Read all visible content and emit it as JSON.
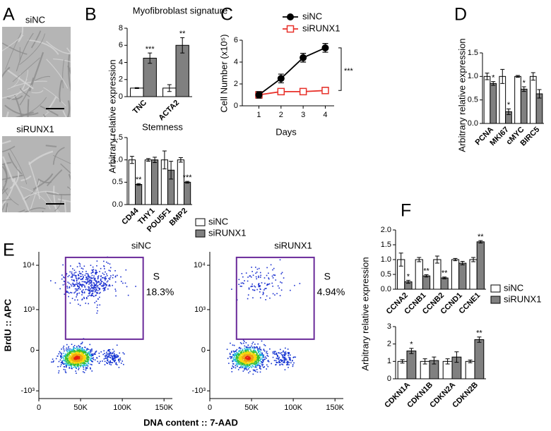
{
  "images": {
    "panel": "A",
    "titles": [
      "siNC",
      "siRUNX1"
    ]
  },
  "chart_data": [
    {
      "type": "bar",
      "panel": "B",
      "title": "Myofibroblast signature",
      "ylabel": "Arbitrary relative expression",
      "categories": [
        "TNC",
        "ACTA2"
      ],
      "series": [
        {
          "color": "#ffffff",
          "values": [
            1,
            1
          ],
          "errors": [
            0.05,
            0.4
          ]
        },
        {
          "color": "#808080",
          "values": [
            4.5,
            6
          ],
          "errors": [
            0.6,
            0.9
          ],
          "significance": [
            "***",
            "**"
          ]
        }
      ],
      "ylim": [
        0,
        8
      ],
      "yticks": [
        0,
        2,
        4,
        6,
        8
      ]
    },
    {
      "type": "bar",
      "title": "Stemness",
      "categories": [
        "CD44",
        "THY1",
        "POU5F1",
        "BMP2"
      ],
      "series": [
        {
          "name": "siNC",
          "color": "#ffffff",
          "values": [
            1,
            1,
            1,
            1
          ],
          "errors": [
            0.08,
            0.03,
            0.2,
            0.05
          ]
        },
        {
          "name": "siRUNX1",
          "color": "#808080",
          "values": [
            0.45,
            1,
            0.77,
            0.5
          ],
          "errors": [
            0.02,
            0.06,
            0.2,
            0.02
          ],
          "significance": [
            "**",
            null,
            null,
            "***"
          ]
        }
      ],
      "ylim": [
        0,
        1.5
      ],
      "yticks": [
        {
          "value": 0,
          "label": "0.0"
        },
        {
          "value": 0.5,
          "label": "0.5"
        },
        {
          "value": 1,
          "label": "1.0"
        },
        {
          "value": 1.5,
          "label": "1.5"
        }
      ],
      "legend": "right"
    },
    {
      "type": "line",
      "panel": "C",
      "xlabel": "Days",
      "ylabel": "Cell Number (x10⁵)",
      "x": [
        1,
        2,
        3,
        4
      ],
      "series": [
        {
          "name": "siNC",
          "color": "#000000",
          "marker": "circle",
          "values": [
            1.0,
            2.5,
            4.4,
            5.3
          ],
          "errors": [
            0.3,
            0.4,
            0.4,
            0.4
          ]
        },
        {
          "name": "siRUNX1",
          "color": "#e8312a",
          "marker": "square",
          "values": [
            1.0,
            1.3,
            1.3,
            1.4
          ],
          "errors": [
            0.2,
            0.2,
            0.2,
            0.3
          ]
        }
      ],
      "annotation": "***",
      "xlim": [
        0.25,
        4.4
      ],
      "xticks": [
        1,
        2,
        3,
        4
      ],
      "ylim": [
        0,
        6
      ],
      "yticks": [
        0,
        2,
        4,
        6
      ],
      "legend": "top"
    },
    {
      "type": "bar",
      "panel": "D",
      "ylabel": "Arbitrary relative expression",
      "categories": [
        "PCNA",
        "MKI67",
        "cMYC",
        "BIRC5"
      ],
      "series": [
        {
          "color": "#ffffff",
          "values": [
            1,
            1,
            1,
            1
          ],
          "errors": [
            0.07,
            0.15,
            0.02,
            0.08
          ]
        },
        {
          "color": "#808080",
          "values": [
            0.85,
            0.25,
            0.73,
            0.63
          ],
          "errors": [
            0.04,
            0.06,
            0.05,
            0.09
          ],
          "significance": [
            "*",
            "*",
            "*",
            null
          ]
        }
      ],
      "ylim": [
        0,
        1.5
      ],
      "yticks": [
        {
          "value": 0,
          "label": "0.0"
        },
        {
          "value": 0.5,
          "label": "0.5"
        },
        {
          "value": 1,
          "label": "1.0"
        },
        {
          "value": 1.5,
          "label": "1.5"
        }
      ]
    },
    {
      "type": "bar",
      "panel": "F",
      "ylabel": "Arbitrary relative expression",
      "categories": [
        "CCNA2",
        "CCNB1",
        "CCNB2",
        "CCND1",
        "CCNE1"
      ],
      "series": [
        {
          "name": "siNC",
          "color": "#ffffff",
          "values": [
            1,
            1,
            1,
            1,
            1
          ],
          "errors": [
            0.22,
            0.07,
            0.12,
            0.04,
            0.07
          ]
        },
        {
          "name": "siRUNX1",
          "color": "#808080",
          "values": [
            0.25,
            0.45,
            0.38,
            0.88,
            1.6
          ],
          "errors": [
            0.05,
            0.04,
            0.03,
            0.06,
            0.04
          ],
          "significance": [
            "*",
            "**",
            "**",
            null,
            "**"
          ]
        }
      ],
      "ylim": [
        0,
        2
      ],
      "yticks": [
        {
          "value": 0,
          "label": "0.0"
        },
        {
          "value": 0.5,
          "label": "0.5"
        },
        {
          "value": 1,
          "label": "1.0"
        },
        {
          "value": 1.5,
          "label": "1.5"
        },
        {
          "value": 2,
          "label": "2.0"
        }
      ],
      "legend": "right"
    },
    {
      "type": "bar",
      "categories": [
        "CDKN1A",
        "CDKN1B",
        "CDKN2A",
        "CDKN2B"
      ],
      "series": [
        {
          "color": "#ffffff",
          "values": [
            1,
            1,
            1,
            1
          ],
          "errors": [
            0.1,
            0.15,
            0.15,
            0.08
          ]
        },
        {
          "color": "#808080",
          "values": [
            1.6,
            1.05,
            1.25,
            2.25
          ],
          "errors": [
            0.15,
            0.2,
            0.3,
            0.15
          ],
          "significance": [
            "*",
            null,
            null,
            "**"
          ]
        }
      ],
      "ylim": [
        0,
        3
      ],
      "yticks": [
        0,
        1,
        2,
        3
      ]
    },
    {
      "type": "scatter",
      "panel": "E",
      "title": "siNC",
      "xlabel": "DNA content :: 7-AAD",
      "ylabel": "BrdU :: APC",
      "xlim": [
        0,
        160000
      ],
      "xticks": [
        0,
        {
          "value": 50000,
          "label": "50K"
        },
        {
          "value": 100000,
          "label": "100K"
        },
        {
          "value": 150000,
          "label": "150K"
        }
      ],
      "ylim": [
        -1500,
        20000
      ],
      "yscale": "biexponential",
      "yticks": [
        {
          "value": -1000,
          "label": "-10³"
        },
        0,
        {
          "value": 1000,
          "label": "10³"
        },
        {
          "value": 10000,
          "label": "10⁴"
        }
      ],
      "gate": {
        "x": [
          32000,
          125000
        ],
        "y": [
          150,
          15000
        ]
      },
      "gate_labels": [
        "S",
        "18.3%"
      ]
    },
    {
      "type": "scatter",
      "title": "siRUNX1",
      "xlim": [
        0,
        160000
      ],
      "xticks": [
        0,
        {
          "value": 50000,
          "label": "50K"
        },
        {
          "value": 100000,
          "label": "100K"
        },
        {
          "value": 150000,
          "label": "150K"
        }
      ],
      "ylim": [
        -1500,
        20000
      ],
      "yscale": "biexponential",
      "yticks": [
        {
          "value": -1000,
          "label": "-10³"
        },
        0,
        {
          "value": 1000,
          "label": "10³"
        },
        {
          "value": 10000,
          "label": "10⁴"
        }
      ],
      "gate": {
        "x": [
          32000,
          125000
        ],
        "y": [
          150,
          15000
        ]
      },
      "gate_labels": [
        "S",
        "4.94%"
      ]
    }
  ]
}
